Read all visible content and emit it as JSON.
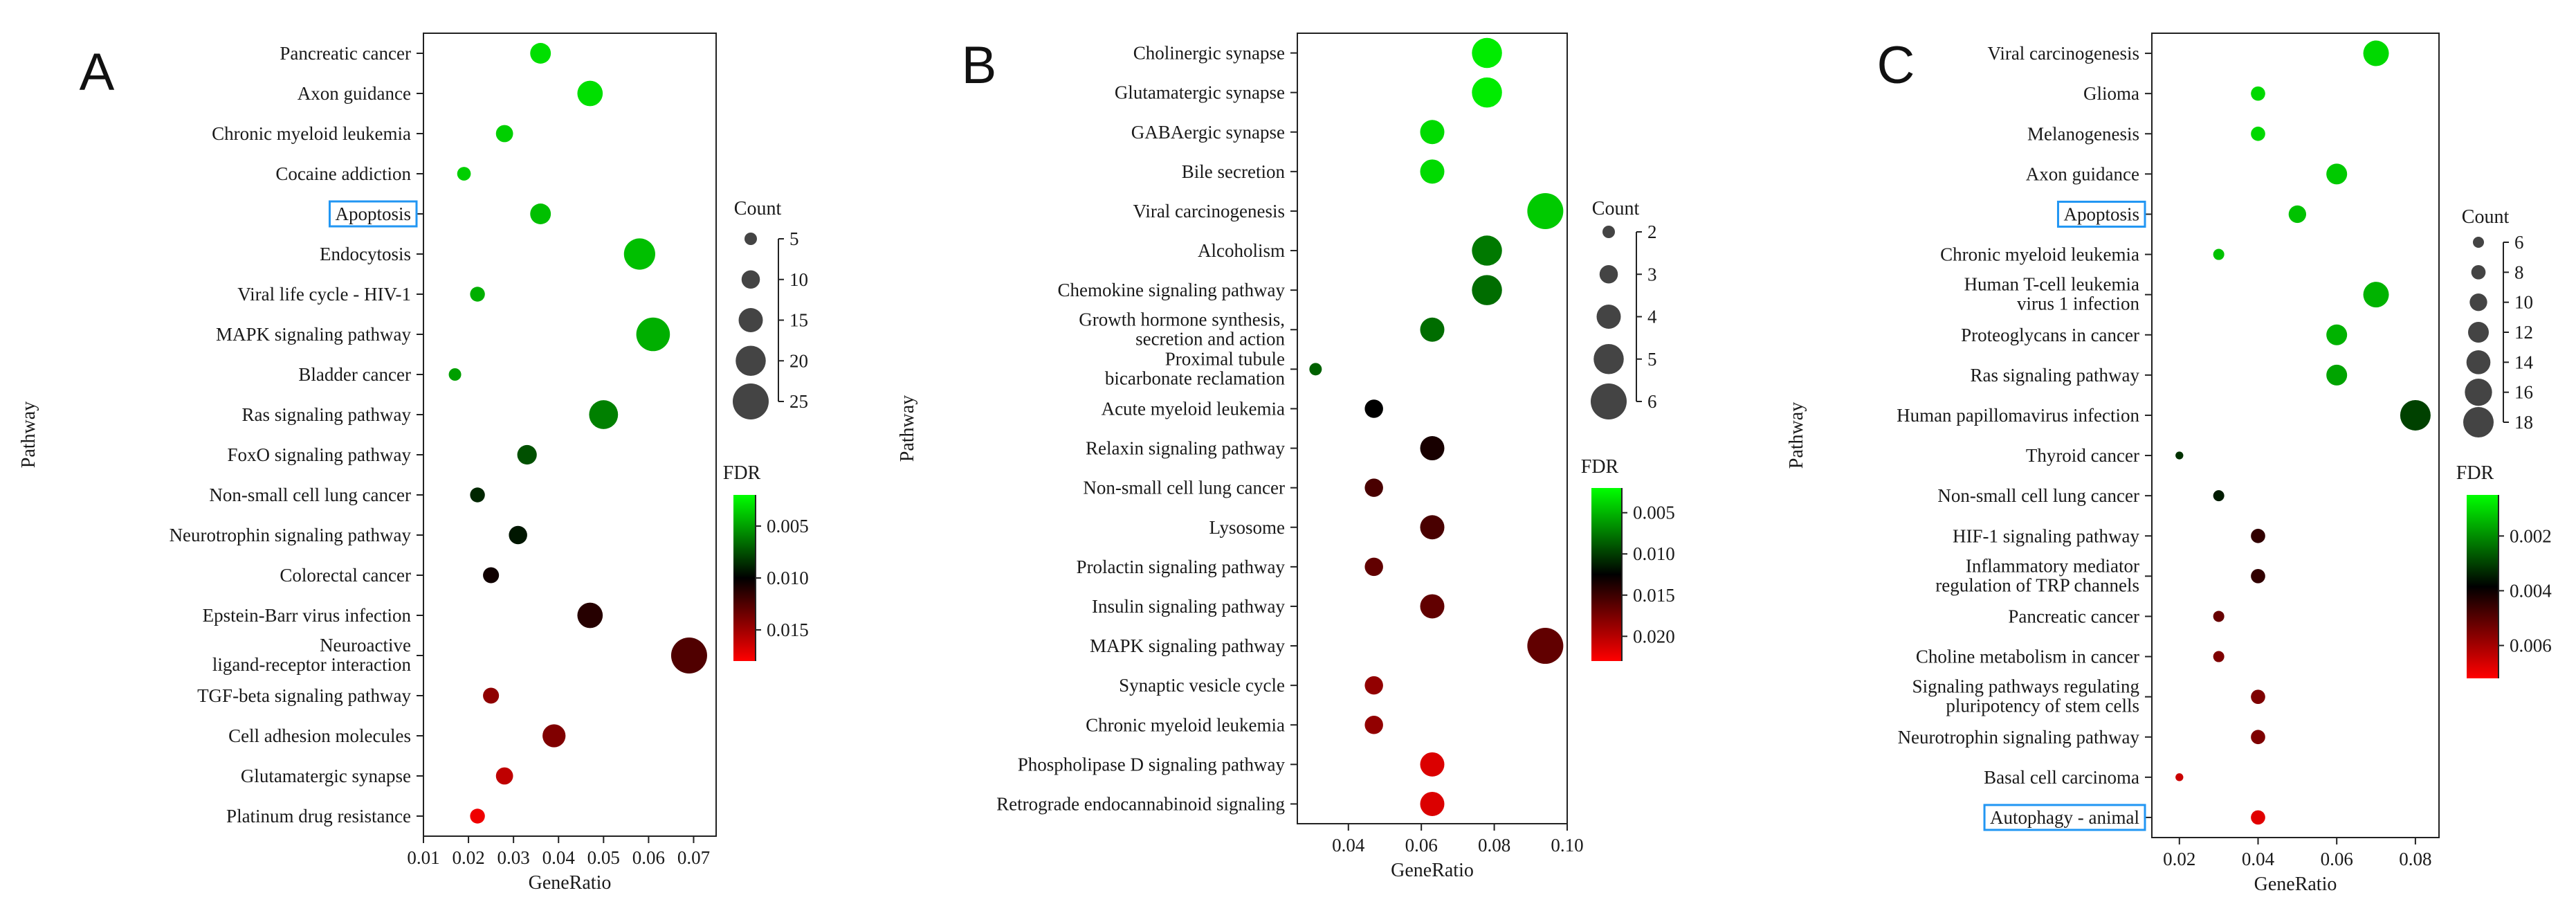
{
  "figure": {
    "xlabel": "GeneRatio",
    "ylabel": "Pathway",
    "size_legend_title": "Count",
    "color_legend_title": "FDR",
    "colors": {
      "low_fdr": "#00ff00",
      "mid_fdr": "#000000",
      "high_fdr": "#ff0000",
      "highlight_box": "#2196f3"
    }
  },
  "chart_data": [
    {
      "panel": "A",
      "type": "scatter",
      "xlabel": "GeneRatio",
      "ylabel": "Pathway",
      "xlim": [
        0.01,
        0.075
      ],
      "xticks": [
        0.01,
        0.02,
        0.03,
        0.04,
        0.05,
        0.06,
        0.07
      ],
      "xtick_labels": [
        "0.01",
        "0.02",
        "0.03",
        "0.04",
        "0.05",
        "0.06",
        "0.07"
      ],
      "count_range": [
        5,
        25
      ],
      "count_ticks": [
        5,
        10,
        15,
        20,
        25
      ],
      "fdr_range": [
        0.002,
        0.018
      ],
      "fdr_ticks": [
        0.005,
        0.01,
        0.015
      ],
      "fdr_tick_labels": [
        "0.005",
        "0.010",
        "0.015"
      ],
      "points": [
        {
          "pathway": "Pancreatic cancer",
          "gene_ratio": 0.036,
          "count": 12,
          "fdr": 0.003
        },
        {
          "pathway": "Axon guidance",
          "gene_ratio": 0.047,
          "count": 16,
          "fdr": 0.003
        },
        {
          "pathway": "Chronic myeloid leukemia",
          "gene_ratio": 0.028,
          "count": 9,
          "fdr": 0.0035
        },
        {
          "pathway": "Cocaine addiction",
          "gene_ratio": 0.019,
          "count": 6,
          "fdr": 0.0035
        },
        {
          "pathway": "Apoptosis",
          "gene_ratio": 0.036,
          "count": 12,
          "fdr": 0.004,
          "highlight": true
        },
        {
          "pathway": "Endocytosis",
          "gene_ratio": 0.058,
          "count": 21,
          "fdr": 0.004
        },
        {
          "pathway": "Viral life cycle - HIV-1",
          "gene_ratio": 0.022,
          "count": 7,
          "fdr": 0.0045
        },
        {
          "pathway": "MAPK signaling pathway",
          "gene_ratio": 0.061,
          "count": 23,
          "fdr": 0.0045
        },
        {
          "pathway": "Bladder cancer",
          "gene_ratio": 0.017,
          "count": 5,
          "fdr": 0.005
        },
        {
          "pathway": "Ras signaling pathway",
          "gene_ratio": 0.05,
          "count": 19,
          "fdr": 0.006
        },
        {
          "pathway": "FoxO signaling pathway",
          "gene_ratio": 0.033,
          "count": 11,
          "fdr": 0.0075
        },
        {
          "pathway": "Non-small cell lung cancer",
          "gene_ratio": 0.022,
          "count": 7,
          "fdr": 0.0088
        },
        {
          "pathway": "Neurotrophin signaling pathway",
          "gene_ratio": 0.031,
          "count": 10,
          "fdr": 0.0093
        },
        {
          "pathway": "Colorectal cancer",
          "gene_ratio": 0.025,
          "count": 8,
          "fdr": 0.0105
        },
        {
          "pathway": "Epstein-Barr virus infection",
          "gene_ratio": 0.047,
          "count": 16,
          "fdr": 0.0112
        },
        {
          "pathway": "Neuroactive ligand-receptor interaction",
          "gene_ratio": 0.069,
          "count": 25,
          "fdr": 0.0125
        },
        {
          "pathway": "TGF-beta signaling pathway",
          "gene_ratio": 0.025,
          "count": 8,
          "fdr": 0.0145
        },
        {
          "pathway": "Cell adhesion molecules",
          "gene_ratio": 0.039,
          "count": 14,
          "fdr": 0.014
        },
        {
          "pathway": "Glutamatergic synapse",
          "gene_ratio": 0.028,
          "count": 9,
          "fdr": 0.016
        },
        {
          "pathway": "Platinum drug resistance",
          "gene_ratio": 0.022,
          "count": 7,
          "fdr": 0.0175
        }
      ]
    },
    {
      "panel": "B",
      "type": "scatter",
      "xlabel": "GeneRatio",
      "ylabel": "Pathway",
      "xlim": [
        0.026,
        0.1
      ],
      "xticks": [
        0.04,
        0.06,
        0.08,
        0.1
      ],
      "xtick_labels": [
        "0.04",
        "0.06",
        "0.08",
        "0.10"
      ],
      "count_range": [
        2,
        6
      ],
      "count_ticks": [
        2,
        3,
        4,
        5,
        6
      ],
      "fdr_range": [
        0.002,
        0.023
      ],
      "fdr_ticks": [
        0.005,
        0.01,
        0.015,
        0.02
      ],
      "fdr_tick_labels": [
        "0.005",
        "0.010",
        "0.015",
        "0.020"
      ],
      "points": [
        {
          "pathway": "Cholinergic synapse",
          "gene_ratio": 0.078,
          "count": 5,
          "fdr": 0.0028
        },
        {
          "pathway": "Glutamatergic synapse",
          "gene_ratio": 0.078,
          "count": 5,
          "fdr": 0.0028
        },
        {
          "pathway": "GABAergic synapse",
          "gene_ratio": 0.063,
          "count": 4,
          "fdr": 0.0035
        },
        {
          "pathway": "Bile secretion",
          "gene_ratio": 0.063,
          "count": 4,
          "fdr": 0.0035
        },
        {
          "pathway": "Viral carcinogenesis",
          "gene_ratio": 0.094,
          "count": 6,
          "fdr": 0.0042
        },
        {
          "pathway": "Alcoholism",
          "gene_ratio": 0.078,
          "count": 5,
          "fdr": 0.0075
        },
        {
          "pathway": "Chemokine signaling pathway",
          "gene_ratio": 0.078,
          "count": 5,
          "fdr": 0.008
        },
        {
          "pathway": "Growth hormone synthesis, secretion and action",
          "gene_ratio": 0.063,
          "count": 4,
          "fdr": 0.008
        },
        {
          "pathway": "Proximal tubule bicarbonate reclamation",
          "gene_ratio": 0.031,
          "count": 2,
          "fdr": 0.0085
        },
        {
          "pathway": "Acute myeloid leukemia",
          "gene_ratio": 0.047,
          "count": 3,
          "fdr": 0.0125
        },
        {
          "pathway": "Relaxin signaling pathway",
          "gene_ratio": 0.063,
          "count": 4,
          "fdr": 0.0135
        },
        {
          "pathway": "Non-small cell lung cancer",
          "gene_ratio": 0.047,
          "count": 3,
          "fdr": 0.0155
        },
        {
          "pathway": "Lysosome",
          "gene_ratio": 0.063,
          "count": 4,
          "fdr": 0.0155
        },
        {
          "pathway": "Prolactin signaling pathway",
          "gene_ratio": 0.047,
          "count": 3,
          "fdr": 0.0165
        },
        {
          "pathway": "Insulin signaling pathway",
          "gene_ratio": 0.063,
          "count": 4,
          "fdr": 0.0165
        },
        {
          "pathway": "MAPK signaling pathway",
          "gene_ratio": 0.094,
          "count": 6,
          "fdr": 0.0165
        },
        {
          "pathway": "Synaptic vesicle cycle",
          "gene_ratio": 0.047,
          "count": 3,
          "fdr": 0.0185
        },
        {
          "pathway": "Chronic myeloid leukemia",
          "gene_ratio": 0.047,
          "count": 3,
          "fdr": 0.0185
        },
        {
          "pathway": "Phospholipase D signaling pathway",
          "gene_ratio": 0.063,
          "count": 4,
          "fdr": 0.0215
        },
        {
          "pathway": "Retrograde endocannabinoid signaling",
          "gene_ratio": 0.063,
          "count": 4,
          "fdr": 0.0215
        }
      ]
    },
    {
      "panel": "C",
      "type": "scatter",
      "xlabel": "GeneRatio",
      "ylabel": "Pathway",
      "xlim": [
        0.013,
        0.086
      ],
      "xticks": [
        0.02,
        0.04,
        0.06,
        0.08
      ],
      "xtick_labels": [
        "0.02",
        "0.04",
        "0.06",
        "0.08"
      ],
      "count_range": [
        6,
        18
      ],
      "count_ticks": [
        6,
        8,
        10,
        12,
        14,
        16,
        18
      ],
      "fdr_range": [
        0.0005,
        0.0072
      ],
      "fdr_ticks": [
        0.002,
        0.004,
        0.006
      ],
      "fdr_tick_labels": [
        "0.002",
        "0.004",
        "0.006"
      ],
      "points": [
        {
          "pathway": "Viral carcinogenesis",
          "gene_ratio": 0.07,
          "count": 15,
          "fdr": 0.001
        },
        {
          "pathway": "Glioma",
          "gene_ratio": 0.04,
          "count": 8,
          "fdr": 0.001
        },
        {
          "pathway": "Melanogenesis",
          "gene_ratio": 0.04,
          "count": 8,
          "fdr": 0.001
        },
        {
          "pathway": "Axon guidance",
          "gene_ratio": 0.06,
          "count": 12,
          "fdr": 0.0012
        },
        {
          "pathway": "Apoptosis",
          "gene_ratio": 0.05,
          "count": 10,
          "fdr": 0.0013,
          "highlight": true
        },
        {
          "pathway": "Chronic myeloid leukemia",
          "gene_ratio": 0.03,
          "count": 6,
          "fdr": 0.0013
        },
        {
          "pathway": "Human T-cell leukemia virus 1 infection",
          "gene_ratio": 0.07,
          "count": 15,
          "fdr": 0.0015
        },
        {
          "pathway": "Proteoglycans in cancer",
          "gene_ratio": 0.06,
          "count": 12,
          "fdr": 0.0015
        },
        {
          "pathway": "Ras signaling pathway",
          "gene_ratio": 0.06,
          "count": 12,
          "fdr": 0.0017
        },
        {
          "pathway": "Human papillomavirus infection",
          "gene_ratio": 0.08,
          "count": 18,
          "fdr": 0.003
        },
        {
          "pathway": "Thyroid cancer",
          "gene_ratio": 0.02,
          "count": 4,
          "fdr": 0.0032
        },
        {
          "pathway": "Non-small cell lung cancer",
          "gene_ratio": 0.03,
          "count": 6,
          "fdr": 0.0035
        },
        {
          "pathway": "HIF-1 signaling pathway",
          "gene_ratio": 0.04,
          "count": 8,
          "fdr": 0.0045
        },
        {
          "pathway": "Inflammatory mediator regulation of TRP channels",
          "gene_ratio": 0.04,
          "count": 8,
          "fdr": 0.0045
        },
        {
          "pathway": "Pancreatic cancer",
          "gene_ratio": 0.03,
          "count": 6,
          "fdr": 0.0052
        },
        {
          "pathway": "Choline metabolism in cancer",
          "gene_ratio": 0.03,
          "count": 6,
          "fdr": 0.0055
        },
        {
          "pathway": "Signaling pathways regulating pluripotency of stem cells",
          "gene_ratio": 0.04,
          "count": 8,
          "fdr": 0.0055
        },
        {
          "pathway": "Neurotrophin signaling pathway",
          "gene_ratio": 0.04,
          "count": 8,
          "fdr": 0.0055
        },
        {
          "pathway": "Basal cell carcinoma",
          "gene_ratio": 0.02,
          "count": 4,
          "fdr": 0.0065
        },
        {
          "pathway": "Autophagy - animal",
          "gene_ratio": 0.04,
          "count": 8,
          "fdr": 0.0068,
          "highlight": true
        }
      ]
    }
  ]
}
